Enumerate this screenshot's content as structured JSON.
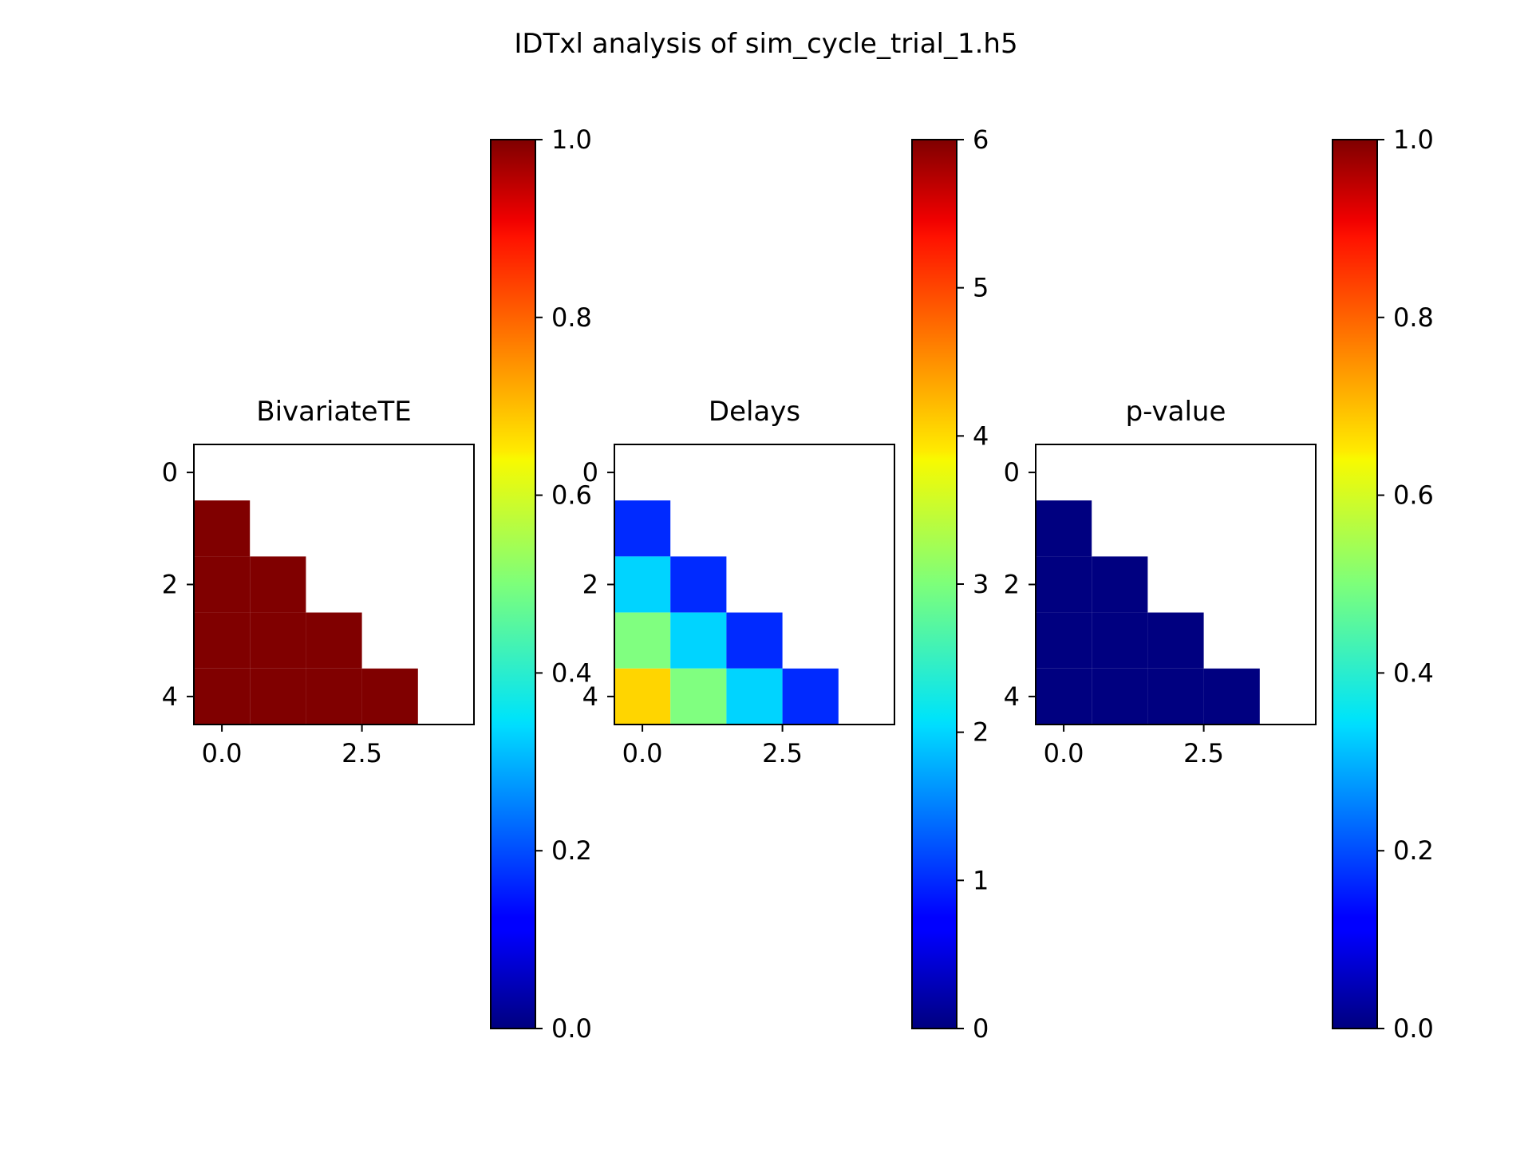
{
  "figure": {
    "suptitle": "IDTxl analysis of sim_cycle_trial_1.h5"
  },
  "chart_data": [
    {
      "type": "heatmap",
      "title": "BivariateTE",
      "colormap": "jet",
      "x_range": [
        -0.5,
        4.5
      ],
      "y_range": [
        -0.5,
        4.5
      ],
      "y_inverted": true,
      "x_ticks": [
        "0.0",
        "2.5"
      ],
      "x_tick_values": [
        0,
        2.5
      ],
      "y_ticks": [
        "0",
        "2",
        "4"
      ],
      "y_tick_values": [
        0,
        2,
        4
      ],
      "matrix": [
        [
          null,
          null,
          null,
          null,
          null
        ],
        [
          1,
          null,
          null,
          null,
          null
        ],
        [
          1,
          1,
          null,
          null,
          null
        ],
        [
          1,
          1,
          1,
          null,
          null
        ],
        [
          1,
          1,
          1,
          1,
          null
        ]
      ],
      "colorbar": {
        "range": [
          0,
          1
        ],
        "ticks": [
          "0.0",
          "0.2",
          "0.4",
          "0.6",
          "0.8",
          "1.0"
        ],
        "tick_values": [
          0,
          0.2,
          0.4,
          0.6,
          0.8,
          1.0
        ]
      }
    },
    {
      "type": "heatmap",
      "title": "Delays",
      "colormap": "jet",
      "x_range": [
        -0.5,
        4.5
      ],
      "y_range": [
        -0.5,
        4.5
      ],
      "y_inverted": true,
      "x_ticks": [
        "0.0",
        "2.5"
      ],
      "x_tick_values": [
        0,
        2.5
      ],
      "y_ticks": [
        "0",
        "2",
        "4"
      ],
      "y_tick_values": [
        0,
        2,
        4
      ],
      "matrix": [
        [
          null,
          null,
          null,
          null,
          null
        ],
        [
          1,
          null,
          null,
          null,
          null
        ],
        [
          2,
          1,
          null,
          null,
          null
        ],
        [
          3,
          2,
          1,
          null,
          null
        ],
        [
          4,
          3,
          2,
          1,
          null
        ]
      ],
      "colorbar": {
        "range": [
          0,
          6
        ],
        "ticks": [
          "0",
          "1",
          "2",
          "3",
          "4",
          "5",
          "6"
        ],
        "tick_values": [
          0,
          1,
          2,
          3,
          4,
          5,
          6
        ]
      }
    },
    {
      "type": "heatmap",
      "title": "p-value",
      "colormap": "jet",
      "x_range": [
        -0.5,
        4.5
      ],
      "y_range": [
        -0.5,
        4.5
      ],
      "y_inverted": true,
      "x_ticks": [
        "0.0",
        "2.5"
      ],
      "x_tick_values": [
        0,
        2.5
      ],
      "y_ticks": [
        "0",
        "2",
        "4"
      ],
      "y_tick_values": [
        0,
        2,
        4
      ],
      "matrix": [
        [
          null,
          null,
          null,
          null,
          null
        ],
        [
          0,
          null,
          null,
          null,
          null
        ],
        [
          0,
          0,
          null,
          null,
          null
        ],
        [
          0,
          0,
          0,
          null,
          null
        ],
        [
          0,
          0,
          0,
          0,
          null
        ]
      ],
      "colorbar": {
        "range": [
          0,
          1
        ],
        "ticks": [
          "0.0",
          "0.2",
          "0.4",
          "0.6",
          "0.8",
          "1.0"
        ],
        "tick_values": [
          0,
          0.2,
          0.4,
          0.6,
          0.8,
          1.0
        ]
      }
    }
  ]
}
